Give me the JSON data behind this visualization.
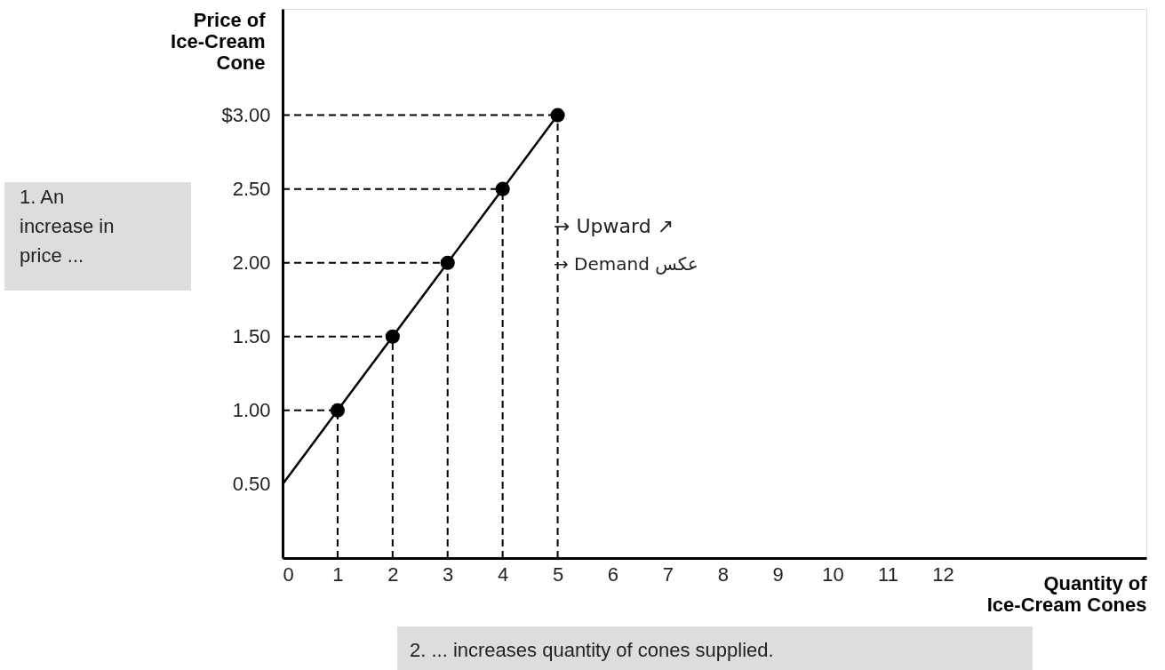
{
  "chart_data": {
    "type": "line",
    "xlabel": "Quantity of Ice-Cream Cones",
    "ylabel": "Price of Ice-Cream Cone",
    "xlim": [
      0,
      15.7
    ],
    "ylim": [
      0,
      3.72
    ],
    "xticks": [
      0,
      1,
      2,
      3,
      4,
      5,
      6,
      7,
      8,
      9,
      10,
      11,
      12
    ],
    "yticks": [
      {
        "value": 0.5,
        "label": "0.50"
      },
      {
        "value": 1,
        "label": "1.00"
      },
      {
        "value": 1.5,
        "label": "1.50"
      },
      {
        "value": 2,
        "label": "2.00"
      },
      {
        "value": 2.5,
        "label": "2.50"
      },
      {
        "value": 3,
        "label": "$3.00"
      }
    ],
    "series": [
      {
        "color": "#000000",
        "marker": "none",
        "x": [
          0,
          1,
          2,
          3,
          4,
          5
        ],
        "values": [
          0.5,
          1,
          1.5,
          2,
          2.5,
          3
        ]
      },
      {
        "color": "#000000",
        "marker": "none",
        "line_style": "dashed",
        "x": [
          1,
          1
        ],
        "values": [
          0,
          1
        ]
      },
      {
        "color": "#000000",
        "marker": "none",
        "line_style": "dashed",
        "x": [
          2,
          2
        ],
        "values": [
          0,
          1.5
        ]
      },
      {
        "color": "#000000",
        "marker": "none",
        "line_style": "dashed",
        "x": [
          3,
          3
        ],
        "values": [
          0,
          2
        ]
      },
      {
        "color": "#000000",
        "marker": "none",
        "line_style": "dashed",
        "x": [
          4,
          4
        ],
        "values": [
          0,
          2.5
        ]
      },
      {
        "color": "#000000",
        "marker": "none",
        "line_style": "dashed",
        "x": [
          5,
          5
        ],
        "values": [
          0,
          3
        ]
      },
      {
        "color": "#000000",
        "marker": "none",
        "line_style": "dashed",
        "x": [
          0,
          1
        ],
        "values": [
          1,
          1
        ]
      },
      {
        "color": "#000000",
        "marker": "none",
        "line_style": "dashed",
        "x": [
          0,
          2
        ],
        "values": [
          1.5,
          1.5
        ]
      },
      {
        "color": "#000000",
        "marker": "none",
        "line_style": "dashed",
        "x": [
          0,
          3
        ],
        "values": [
          2,
          2
        ]
      },
      {
        "color": "#000000",
        "marker": "none",
        "line_style": "dashed",
        "x": [
          0,
          4
        ],
        "values": [
          2.5,
          2.5
        ]
      },
      {
        "color": "#000000",
        "marker": "none",
        "line_style": "dashed",
        "x": [
          0,
          5
        ],
        "values": [
          3,
          3
        ]
      },
      {
        "type": "scatter",
        "color": "#000000",
        "marker": "circle",
        "x": [
          1,
          2,
          3,
          4,
          5
        ],
        "values": [
          1,
          1.5,
          2,
          2.5,
          3
        ]
      }
    ],
    "annotations": [
      "1. An increase in price ...",
      "2. ... increases quantity of cones supplied.",
      "→ Upward ↗",
      "→ Demand عكس"
    ],
    "grid": false
  }
}
